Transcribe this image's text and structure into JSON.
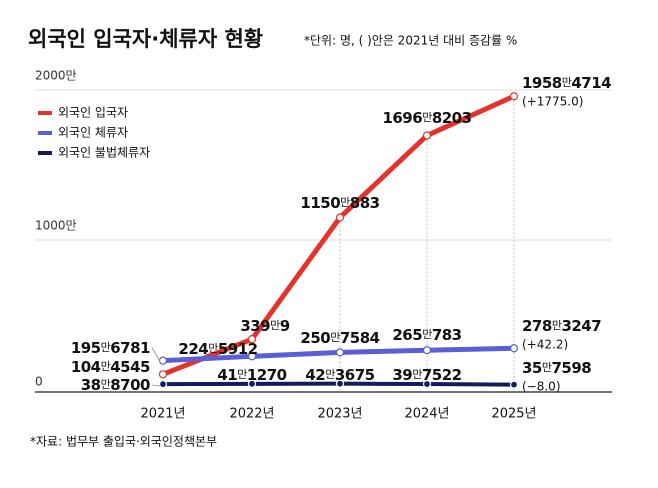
{
  "chart_data": {
    "type": "line",
    "title": "외국인 입국자·체류자 현황",
    "subtitle": "*단위: 명, ( )안은 2021년 대비 증감률 %",
    "source": "*자료: 법무부 출입국·외국인정책본부",
    "categories": [
      "2021년",
      "2022년",
      "2023년",
      "2024년",
      "2025년"
    ],
    "ylim": [
      0,
      20000000
    ],
    "yticks": [
      {
        "value": 0,
        "label": "0"
      },
      {
        "value": 10000000,
        "label": "1000만"
      },
      {
        "value": 20000000,
        "label": "2000만"
      }
    ],
    "grid": true,
    "legend": "top-left",
    "series": [
      {
        "name": "외국인 입국자",
        "color": "#e5322b",
        "values": [
          1044545,
          3390009,
          11500883,
          16968203,
          19584714
        ],
        "value_labels": [
          "104만4545",
          "339만9",
          "1150만883",
          "1696만8203",
          "1958만4714"
        ],
        "change_label": "(+1775.0)"
      },
      {
        "name": "외국인 체류자",
        "color": "#5b5fd6",
        "values": [
          1956781,
          2245912,
          2507584,
          2650783,
          2783247
        ],
        "value_labels": [
          "195만6781",
          "224만5912",
          "250만7584",
          "265만783",
          "278만3247"
        ],
        "change_label": "(+42.2)"
      },
      {
        "name": "외국인 불법체류자",
        "color": "#101c5c",
        "values": [
          388700,
          411270,
          423675,
          397522,
          357598
        ],
        "value_labels": [
          "38만8700",
          "41만1270",
          "42만3675",
          "39만7522",
          "35만7598"
        ],
        "change_label": "(−8.0)"
      }
    ]
  }
}
